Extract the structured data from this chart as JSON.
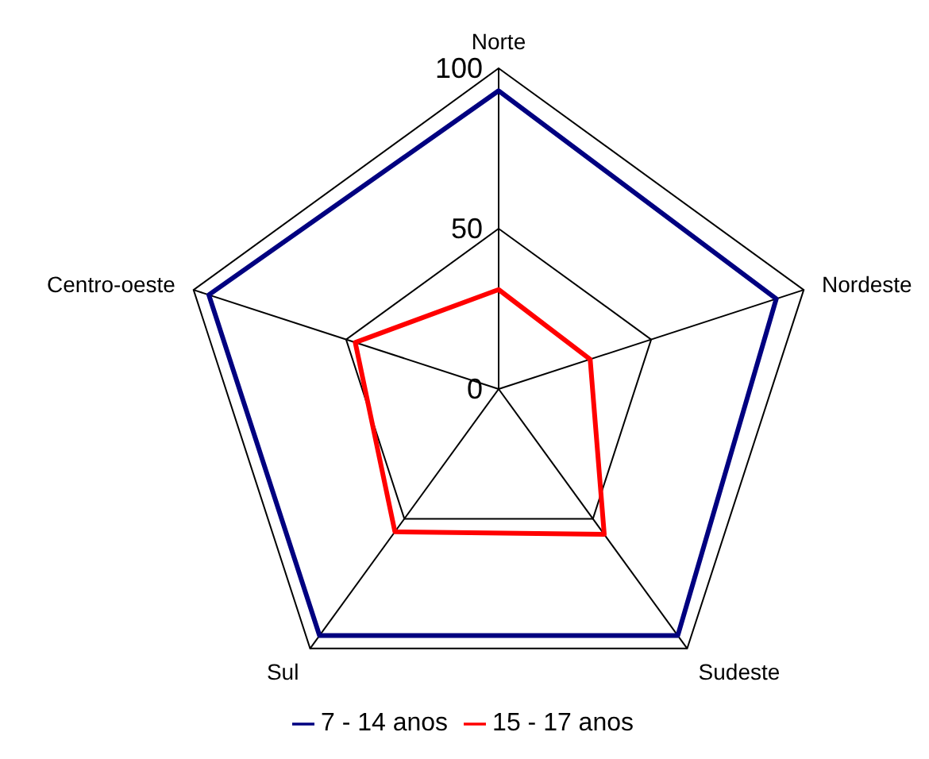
{
  "chart_data": {
    "type": "radar",
    "categories": [
      "Norte",
      "Nordeste",
      "Sudeste",
      "Sul",
      "Centro-oeste"
    ],
    "series": [
      {
        "name": "7 - 14 anos",
        "color": "#000080",
        "values": [
          93,
          91,
          95,
          95,
          95
        ]
      },
      {
        "name": "15 - 17 anos",
        "color": "#ff0000",
        "values": [
          31,
          30,
          56,
          55,
          47
        ]
      }
    ],
    "ylim": [
      0,
      100
    ],
    "yticks": [
      0,
      50,
      100
    ],
    "legend": "bottom",
    "marker": "none"
  }
}
